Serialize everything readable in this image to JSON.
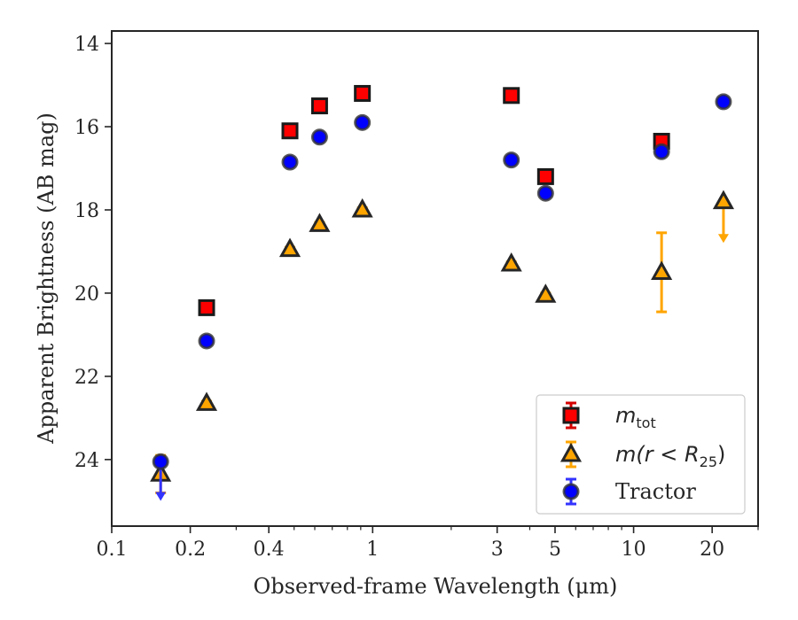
{
  "chart_data": {
    "type": "scatter",
    "title": "",
    "xlabel": "Observed-frame Wavelength (μm)",
    "ylabel": "Apparent Brightness (AB mag)",
    "xscale": "log",
    "xlim": [
      0.1,
      30
    ],
    "ylim": [
      25.6,
      13.7
    ],
    "y_inverted": true,
    "grid": false,
    "legend_position": "lower-right",
    "x_ticks": [
      {
        "value": 0.1,
        "label": "0.1"
      },
      {
        "value": 0.2,
        "label": "0.2"
      },
      {
        "value": 0.4,
        "label": "0.4"
      },
      {
        "value": 1,
        "label": "1"
      },
      {
        "value": 3,
        "label": "3"
      },
      {
        "value": 5,
        "label": "5"
      },
      {
        "value": 10,
        "label": "10"
      },
      {
        "value": 20,
        "label": "20"
      }
    ],
    "y_ticks": [
      {
        "value": 14,
        "label": "14"
      },
      {
        "value": 16,
        "label": "16"
      },
      {
        "value": 18,
        "label": "18"
      },
      {
        "value": 20,
        "label": "20"
      },
      {
        "value": 22,
        "label": "22"
      },
      {
        "value": 24,
        "label": "24"
      }
    ],
    "series": [
      {
        "name": "m_tot",
        "legend_main": "m",
        "legend_sub": "tot",
        "marker": "square",
        "face_color": "#ff0000",
        "edge_color": "#1a1a1a",
        "error_color": "#d60000",
        "points": [
          {
            "x": 0.231,
            "y": 20.35,
            "err": 0.05
          },
          {
            "x": 0.482,
            "y": 16.1,
            "err": 0.05
          },
          {
            "x": 0.626,
            "y": 15.5,
            "err": 0.05
          },
          {
            "x": 0.913,
            "y": 15.2,
            "err": 0.05
          },
          {
            "x": 3.4,
            "y": 15.25,
            "err": 0.05
          },
          {
            "x": 4.6,
            "y": 17.2,
            "err": 0.05
          },
          {
            "x": 12.8,
            "y": 16.35,
            "err": 0.05
          }
        ]
      },
      {
        "name": "m(r<R_25)",
        "legend_main": "m(r < R",
        "legend_sub": "25",
        "legend_close": ")",
        "marker": "triangle",
        "face_color": "#ffa500",
        "edge_color": "#262626",
        "error_color": "#ffa500",
        "points": [
          {
            "x": 0.154,
            "y": 24.35,
            "err": 0.45
          },
          {
            "x": 0.231,
            "y": 22.65,
            "err": 0.05
          },
          {
            "x": 0.482,
            "y": 18.95,
            "err": 0.05
          },
          {
            "x": 0.626,
            "y": 18.35,
            "err": 0.05
          },
          {
            "x": 0.913,
            "y": 18.0,
            "err": 0.05
          },
          {
            "x": 3.4,
            "y": 19.3,
            "err": 0.05
          },
          {
            "x": 4.6,
            "y": 20.05,
            "err": 0.05
          },
          {
            "x": 12.8,
            "y": 19.5,
            "err": 0.95
          },
          {
            "x": 22.1,
            "y": 17.8,
            "upper_limit_to": 18.75
          }
        ]
      },
      {
        "name": "Tractor",
        "legend_main": "Tractor",
        "marker": "circle",
        "face_color": "#0000ff",
        "edge_color": "#333333",
        "error_color": "#3333ff",
        "points": [
          {
            "x": 0.154,
            "y": 24.05,
            "upper_limit_to": 24.95
          },
          {
            "x": 0.231,
            "y": 21.15,
            "err": 0.05
          },
          {
            "x": 0.482,
            "y": 16.85,
            "err": 0.05
          },
          {
            "x": 0.626,
            "y": 16.25,
            "err": 0.05
          },
          {
            "x": 0.913,
            "y": 15.9,
            "err": 0.05
          },
          {
            "x": 3.4,
            "y": 16.8,
            "err": 0.05
          },
          {
            "x": 4.6,
            "y": 17.6,
            "err": 0.05
          },
          {
            "x": 12.8,
            "y": 16.6,
            "err": 0.05
          },
          {
            "x": 22.1,
            "y": 15.4,
            "err": 0.05
          }
        ]
      }
    ]
  }
}
